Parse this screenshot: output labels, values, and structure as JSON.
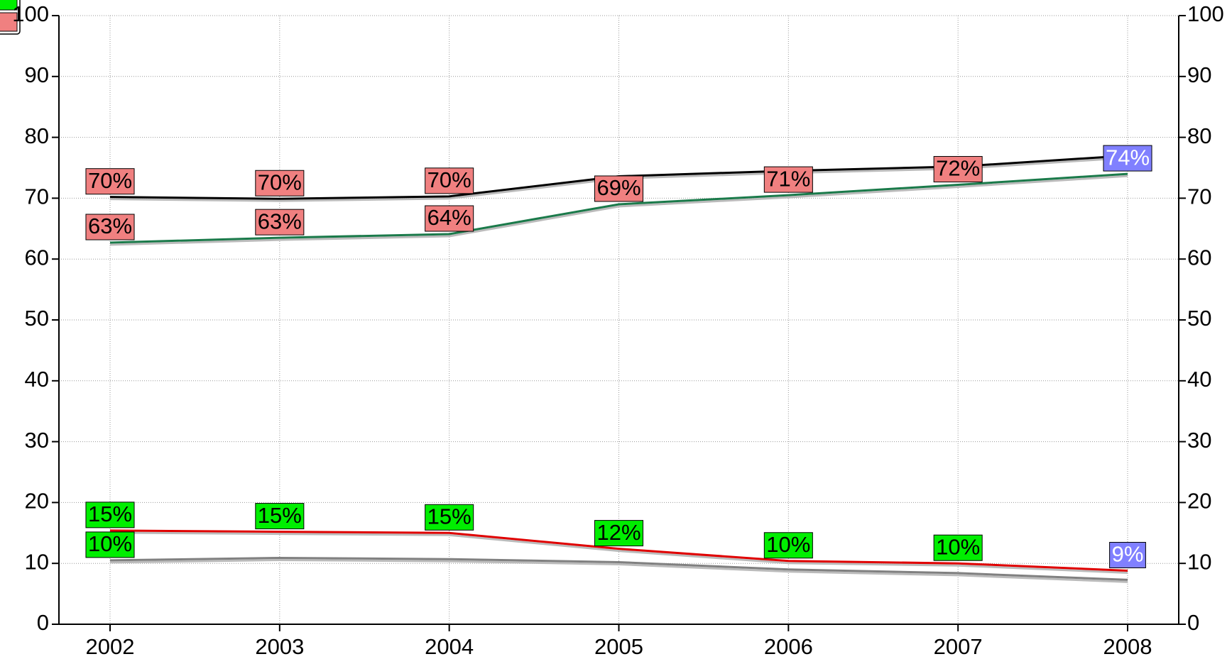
{
  "chart_data": {
    "type": "line",
    "categories": [
      "2002",
      "2003",
      "2004",
      "2005",
      "2006",
      "2007",
      "2008"
    ],
    "series": [
      {
        "color": "#000000",
        "values": [
          70.2,
          69.9,
          70.3,
          73.6,
          74.5,
          75.2,
          77.0
        ],
        "value_labels": [
          "70%",
          "70%",
          "70%",
          null,
          null,
          null,
          null
        ],
        "label_colors": [
          "#f08080",
          "#f08080",
          "#f08080",
          null,
          null,
          null,
          null
        ]
      },
      {
        "color": "#1a7a4a",
        "values": [
          62.7,
          63.5,
          64.1,
          69.0,
          70.5,
          72.2,
          74.0
        ],
        "value_labels": [
          "63%",
          "63%",
          "64%",
          "69%",
          "71%",
          "72%",
          "74%"
        ],
        "label_colors": [
          "#f08080",
          "#f08080",
          "#f08080",
          "#f08080",
          "#f08080",
          "#f08080",
          "#8080ff"
        ]
      },
      {
        "color": "#e00000",
        "values": [
          15.4,
          15.2,
          15.0,
          12.4,
          10.4,
          10.0,
          8.8
        ],
        "value_labels": [
          "15%",
          "15%",
          "15%",
          "12%",
          "10%",
          "10%",
          "9%"
        ],
        "label_colors": [
          "#00ee00",
          "#00ee00",
          "#00ee00",
          "#00ee00",
          "#00ee00",
          "#00ee00",
          "#8080ff"
        ]
      },
      {
        "color": "#808080",
        "values": [
          10.5,
          10.9,
          10.7,
          10.2,
          9.0,
          8.4,
          7.3
        ],
        "value_labels": [
          "10%",
          null,
          null,
          null,
          null,
          null,
          null
        ],
        "label_colors": [
          "#00ee00",
          null,
          null,
          null,
          null,
          null,
          null
        ]
      }
    ],
    "ylim": [
      0,
      100
    ],
    "yticks": [
      0,
      10,
      20,
      30,
      40,
      50,
      60,
      70,
      80,
      90,
      100
    ],
    "y2lim": [
      0,
      100
    ],
    "y2ticks": [
      0,
      10,
      20,
      30,
      40,
      50,
      60,
      70,
      80,
      90,
      100
    ],
    "grid": true
  }
}
